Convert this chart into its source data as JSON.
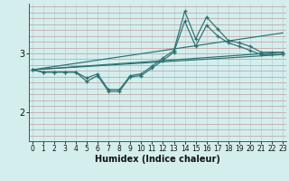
{
  "xlabel": "Humidex (Indice chaleur)",
  "bg_color": "#d4eeee",
  "line_color": "#2d7070",
  "grid_color_v": "#b8d8d8",
  "grid_color_h": "#c8a8a8",
  "xlim": [
    -0.3,
    23.3
  ],
  "ylim": [
    1.5,
    3.85
  ],
  "yticks": [
    2,
    3
  ],
  "xticks": [
    0,
    1,
    2,
    3,
    4,
    5,
    6,
    7,
    8,
    9,
    10,
    11,
    12,
    13,
    14,
    15,
    16,
    17,
    18,
    19,
    20,
    21,
    22,
    23
  ],
  "line_jagged1": {
    "x": [
      0,
      1,
      2,
      3,
      4,
      5,
      6,
      7,
      8,
      9,
      10,
      11,
      12,
      13,
      14,
      15,
      16,
      17,
      18,
      19,
      20,
      21,
      22,
      23
    ],
    "y": [
      2.72,
      2.68,
      2.68,
      2.68,
      2.68,
      2.58,
      2.65,
      2.38,
      2.38,
      2.62,
      2.65,
      2.78,
      2.92,
      3.05,
      3.72,
      3.25,
      3.62,
      3.42,
      3.22,
      3.18,
      3.12,
      3.02,
      3.02,
      3.02
    ]
  },
  "line_jagged2": {
    "x": [
      0,
      1,
      2,
      3,
      4,
      5,
      6,
      7,
      8,
      9,
      10,
      11,
      12,
      13,
      14,
      15,
      16,
      17,
      18,
      19,
      20,
      21,
      22,
      23
    ],
    "y": [
      2.72,
      2.68,
      2.68,
      2.68,
      2.68,
      2.52,
      2.62,
      2.35,
      2.35,
      2.6,
      2.62,
      2.75,
      2.88,
      3.02,
      3.55,
      3.12,
      3.48,
      3.3,
      3.18,
      3.12,
      3.05,
      2.98,
      2.98,
      2.98
    ]
  },
  "line_straight1": {
    "x": [
      0,
      23
    ],
    "y": [
      2.72,
      3.35
    ]
  },
  "line_straight2": {
    "x": [
      0,
      23
    ],
    "y": [
      2.72,
      3.02
    ]
  },
  "line_straight3": {
    "x": [
      0,
      23
    ],
    "y": [
      2.72,
      2.98
    ]
  },
  "xlabel_fontsize": 7,
  "tick_fontsize": 5.5,
  "ytick_fontsize": 7
}
